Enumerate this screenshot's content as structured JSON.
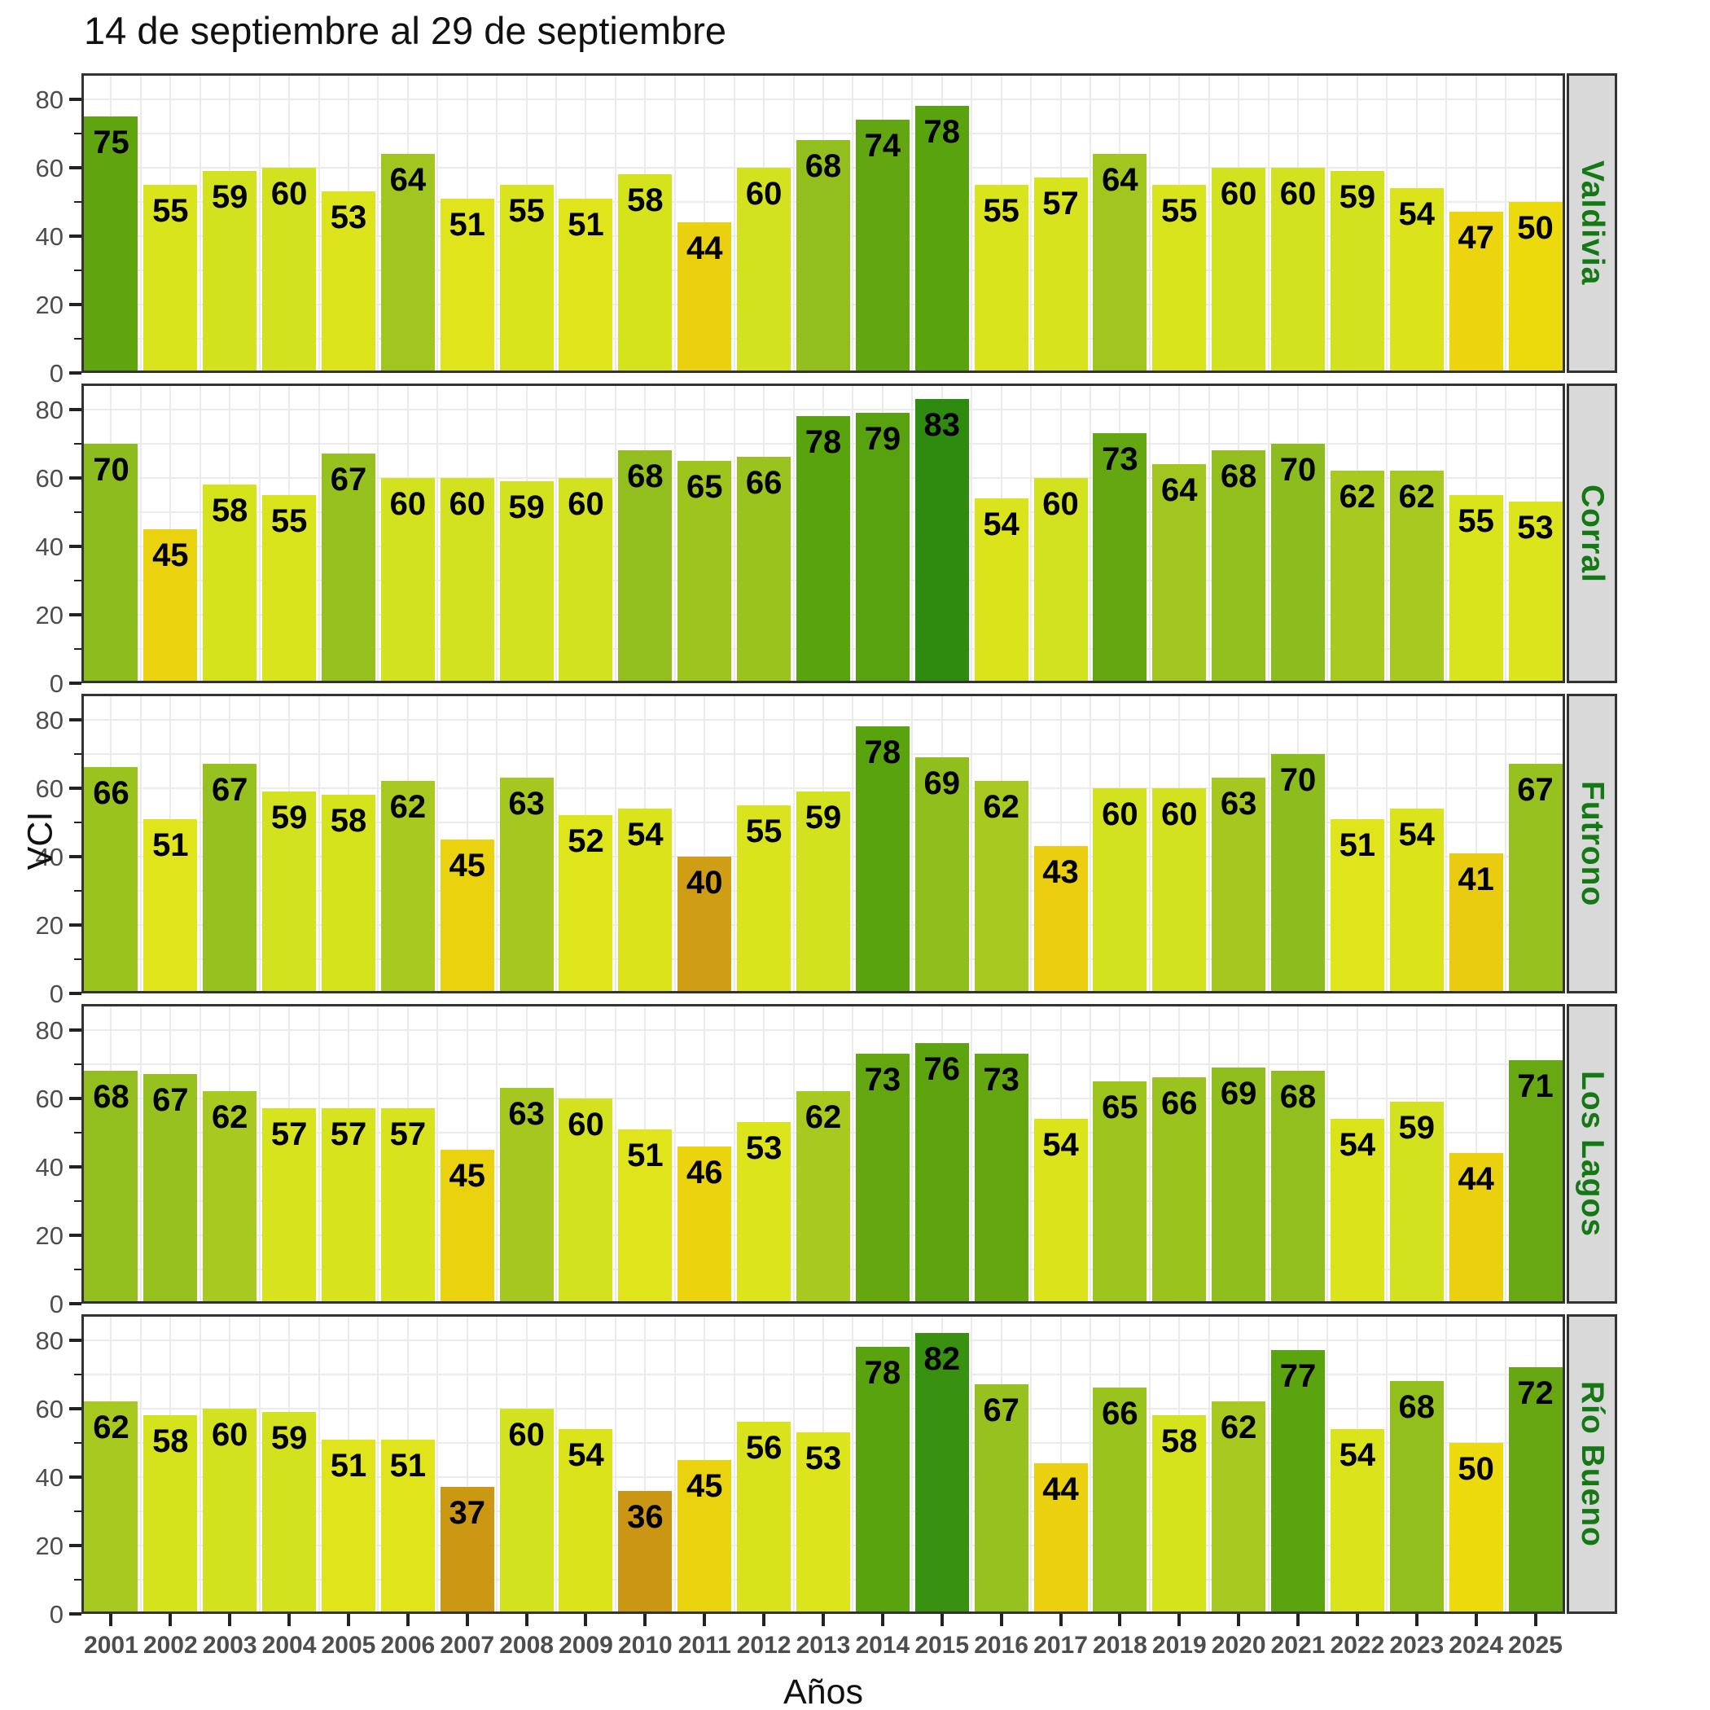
{
  "title": "14 de septiembre al 29 de septiembre",
  "chart_data": {
    "type": "bar",
    "title": "14 de septiembre al 29 de septiembre",
    "xlabel": "Años",
    "ylabel": "VCI",
    "ylim": [
      0,
      87.5
    ],
    "yticks": [
      0,
      20,
      40,
      60,
      80
    ],
    "yticks_minor": [
      10,
      30,
      50,
      70
    ],
    "grid": true,
    "legend_position": "none",
    "facet_layout": "rows",
    "categories": [
      "2001",
      "2002",
      "2003",
      "2004",
      "2005",
      "2006",
      "2007",
      "2008",
      "2009",
      "2010",
      "2011",
      "2012",
      "2013",
      "2014",
      "2015",
      "2016",
      "2017",
      "2018",
      "2019",
      "2020",
      "2021",
      "2022",
      "2023",
      "2024",
      "2025"
    ],
    "series": [
      {
        "name": "Valdivia",
        "values": [
          75,
          55,
          59,
          60,
          53,
          64,
          51,
          55,
          51,
          58,
          44,
          60,
          68,
          74,
          78,
          55,
          57,
          64,
          55,
          60,
          60,
          59,
          54,
          47,
          50
        ]
      },
      {
        "name": "Corral",
        "values": [
          70,
          45,
          58,
          55,
          67,
          60,
          60,
          59,
          60,
          68,
          65,
          66,
          78,
          79,
          83,
          54,
          60,
          73,
          64,
          68,
          70,
          62,
          62,
          55,
          53
        ]
      },
      {
        "name": "Futrono",
        "values": [
          66,
          51,
          67,
          59,
          58,
          62,
          45,
          63,
          52,
          54,
          40,
          55,
          59,
          78,
          69,
          62,
          43,
          60,
          60,
          63,
          70,
          51,
          54,
          41,
          67
        ]
      },
      {
        "name": "Los Lagos",
        "values": [
          68,
          67,
          62,
          57,
          57,
          57,
          45,
          63,
          60,
          51,
          46,
          53,
          62,
          73,
          76,
          73,
          54,
          65,
          66,
          69,
          68,
          54,
          59,
          44,
          71
        ]
      },
      {
        "name": "Río Bueno",
        "values": [
          62,
          58,
          60,
          59,
          51,
          51,
          37,
          60,
          54,
          36,
          45,
          56,
          53,
          78,
          82,
          67,
          44,
          66,
          58,
          62,
          77,
          54,
          68,
          50,
          72
        ]
      }
    ],
    "bar_color_stops": [
      [
        36,
        "#cb9613"
      ],
      [
        40,
        "#d09e15"
      ],
      [
        41,
        "#e9cb10"
      ],
      [
        50,
        "#edda0d"
      ],
      [
        51,
        "#dfe51a"
      ],
      [
        60,
        "#d2e21e"
      ],
      [
        62,
        "#a8c91f"
      ],
      [
        70,
        "#8cbc1d"
      ],
      [
        71,
        "#68a812"
      ],
      [
        79,
        "#57a20e"
      ],
      [
        83,
        "#2e8b10"
      ]
    ]
  },
  "colors": {
    "strip_background": "#d9d9d9",
    "strip_text": "#147814",
    "panel_border": "#333333",
    "gridline": "#ebebeb",
    "axis_text": "#4d4d4d",
    "title_text": "#111111",
    "bar_label": "#000000",
    "background": "#ffffff"
  }
}
